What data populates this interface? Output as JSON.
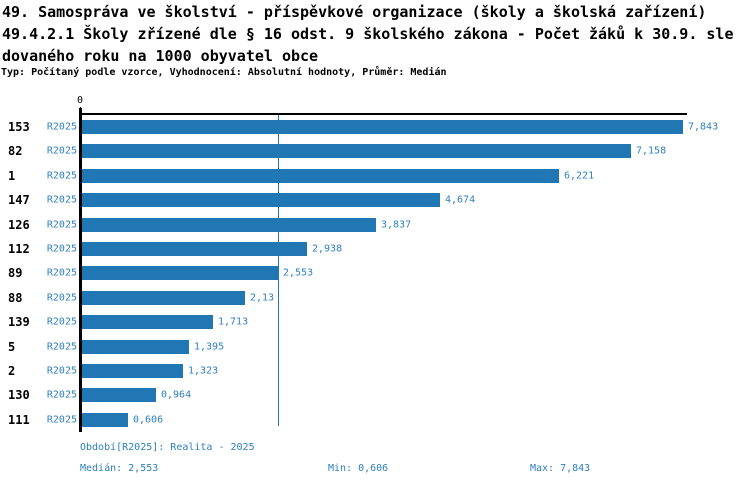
{
  "header": {
    "title_line1": "49. Samospráva ve školství - příspěvkové organizace (školy a školská zařízení)",
    "title_line2": "49.4.2.1 Školy zřízené dle § 16 odst. 9 školského zákona - Počet žáků k 30.9. sle",
    "title_line3": "dovaného roku na 1000 obyvatel obce",
    "subtitle": "Typ: Počítaný podle vzorce, Vyhodnocení: Absolutní hodnoty, Průměr: Medián"
  },
  "chart_data": {
    "type": "bar",
    "orientation": "horizontal",
    "title": "49.4.2.1 Školy zřízené dle § 16 odst. 9 školského zákona - Počet žáků k 30.9. sledovaného roku na 1000 obyvatel obce",
    "xlabel": "",
    "ylabel": "",
    "axis_zero_label": "0",
    "xlim": [
      0,
      7.9
    ],
    "grid": false,
    "legend_position": "none",
    "categories": [
      "153",
      "82",
      "1",
      "147",
      "126",
      "112",
      "89",
      "88",
      "139",
      "5",
      "2",
      "130",
      "111"
    ],
    "series_label": "R2025",
    "values": [
      7.843,
      7.158,
      6.221,
      4.674,
      3.837,
      2.938,
      2.553,
      2.13,
      1.713,
      1.395,
      1.323,
      0.964,
      0.606
    ],
    "value_labels": [
      "7,843",
      "7,158",
      "6,221",
      "4,674",
      "3,837",
      "2,938",
      "2,553",
      "2,13",
      "1,713",
      "1,395",
      "1,323",
      "0,964",
      "0,606"
    ],
    "median_value": 2.553,
    "bar_color": "#2077b4",
    "text_color": "#2f80c0"
  },
  "footer": {
    "period": "Období[R2025]: Realita - 2025",
    "median": "Medián: 2,553",
    "min": "Min: 0,606",
    "max": "Max: 7,843"
  }
}
